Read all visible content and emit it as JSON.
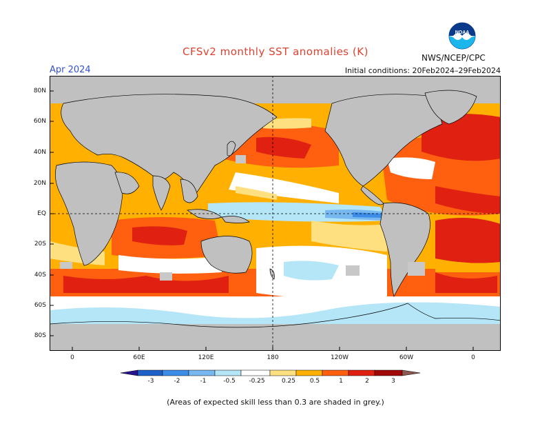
{
  "header": {
    "title": "CFSv2 monthly SST anomalies (K)",
    "month": "Apr 2024",
    "initial_conditions": "Initial conditions: 20Feb2024–29Feb2024",
    "agency": "NWS/NCEP/CPC",
    "logo_text": "NOAA"
  },
  "map": {
    "lat_labels": [
      "80N",
      "60N",
      "40N",
      "20N",
      "EQ",
      "20S",
      "40S",
      "60S",
      "80S"
    ],
    "lon_labels": [
      "0",
      "60E",
      "120E",
      "180",
      "120W",
      "60W",
      "0"
    ],
    "land_color": "#c0c0c0",
    "skill_mask_color": "#c8c8c8"
  },
  "colorbar": {
    "levels": [
      "-3",
      "-2",
      "-1",
      "-0.5",
      "-0.25",
      "0.25",
      "0.5",
      "1",
      "2",
      "3"
    ],
    "colors": [
      "#2a148c",
      "#1c60c8",
      "#3c8ce8",
      "#78b8f0",
      "#b4e6f8",
      "#ffffff",
      "#ffe080",
      "#ffb000",
      "#ff6010",
      "#e02010",
      "#a00808",
      "#8a5a50"
    ]
  },
  "footnote": "(Areas of expected skill less than 0.3 are shaded in grey.)"
}
